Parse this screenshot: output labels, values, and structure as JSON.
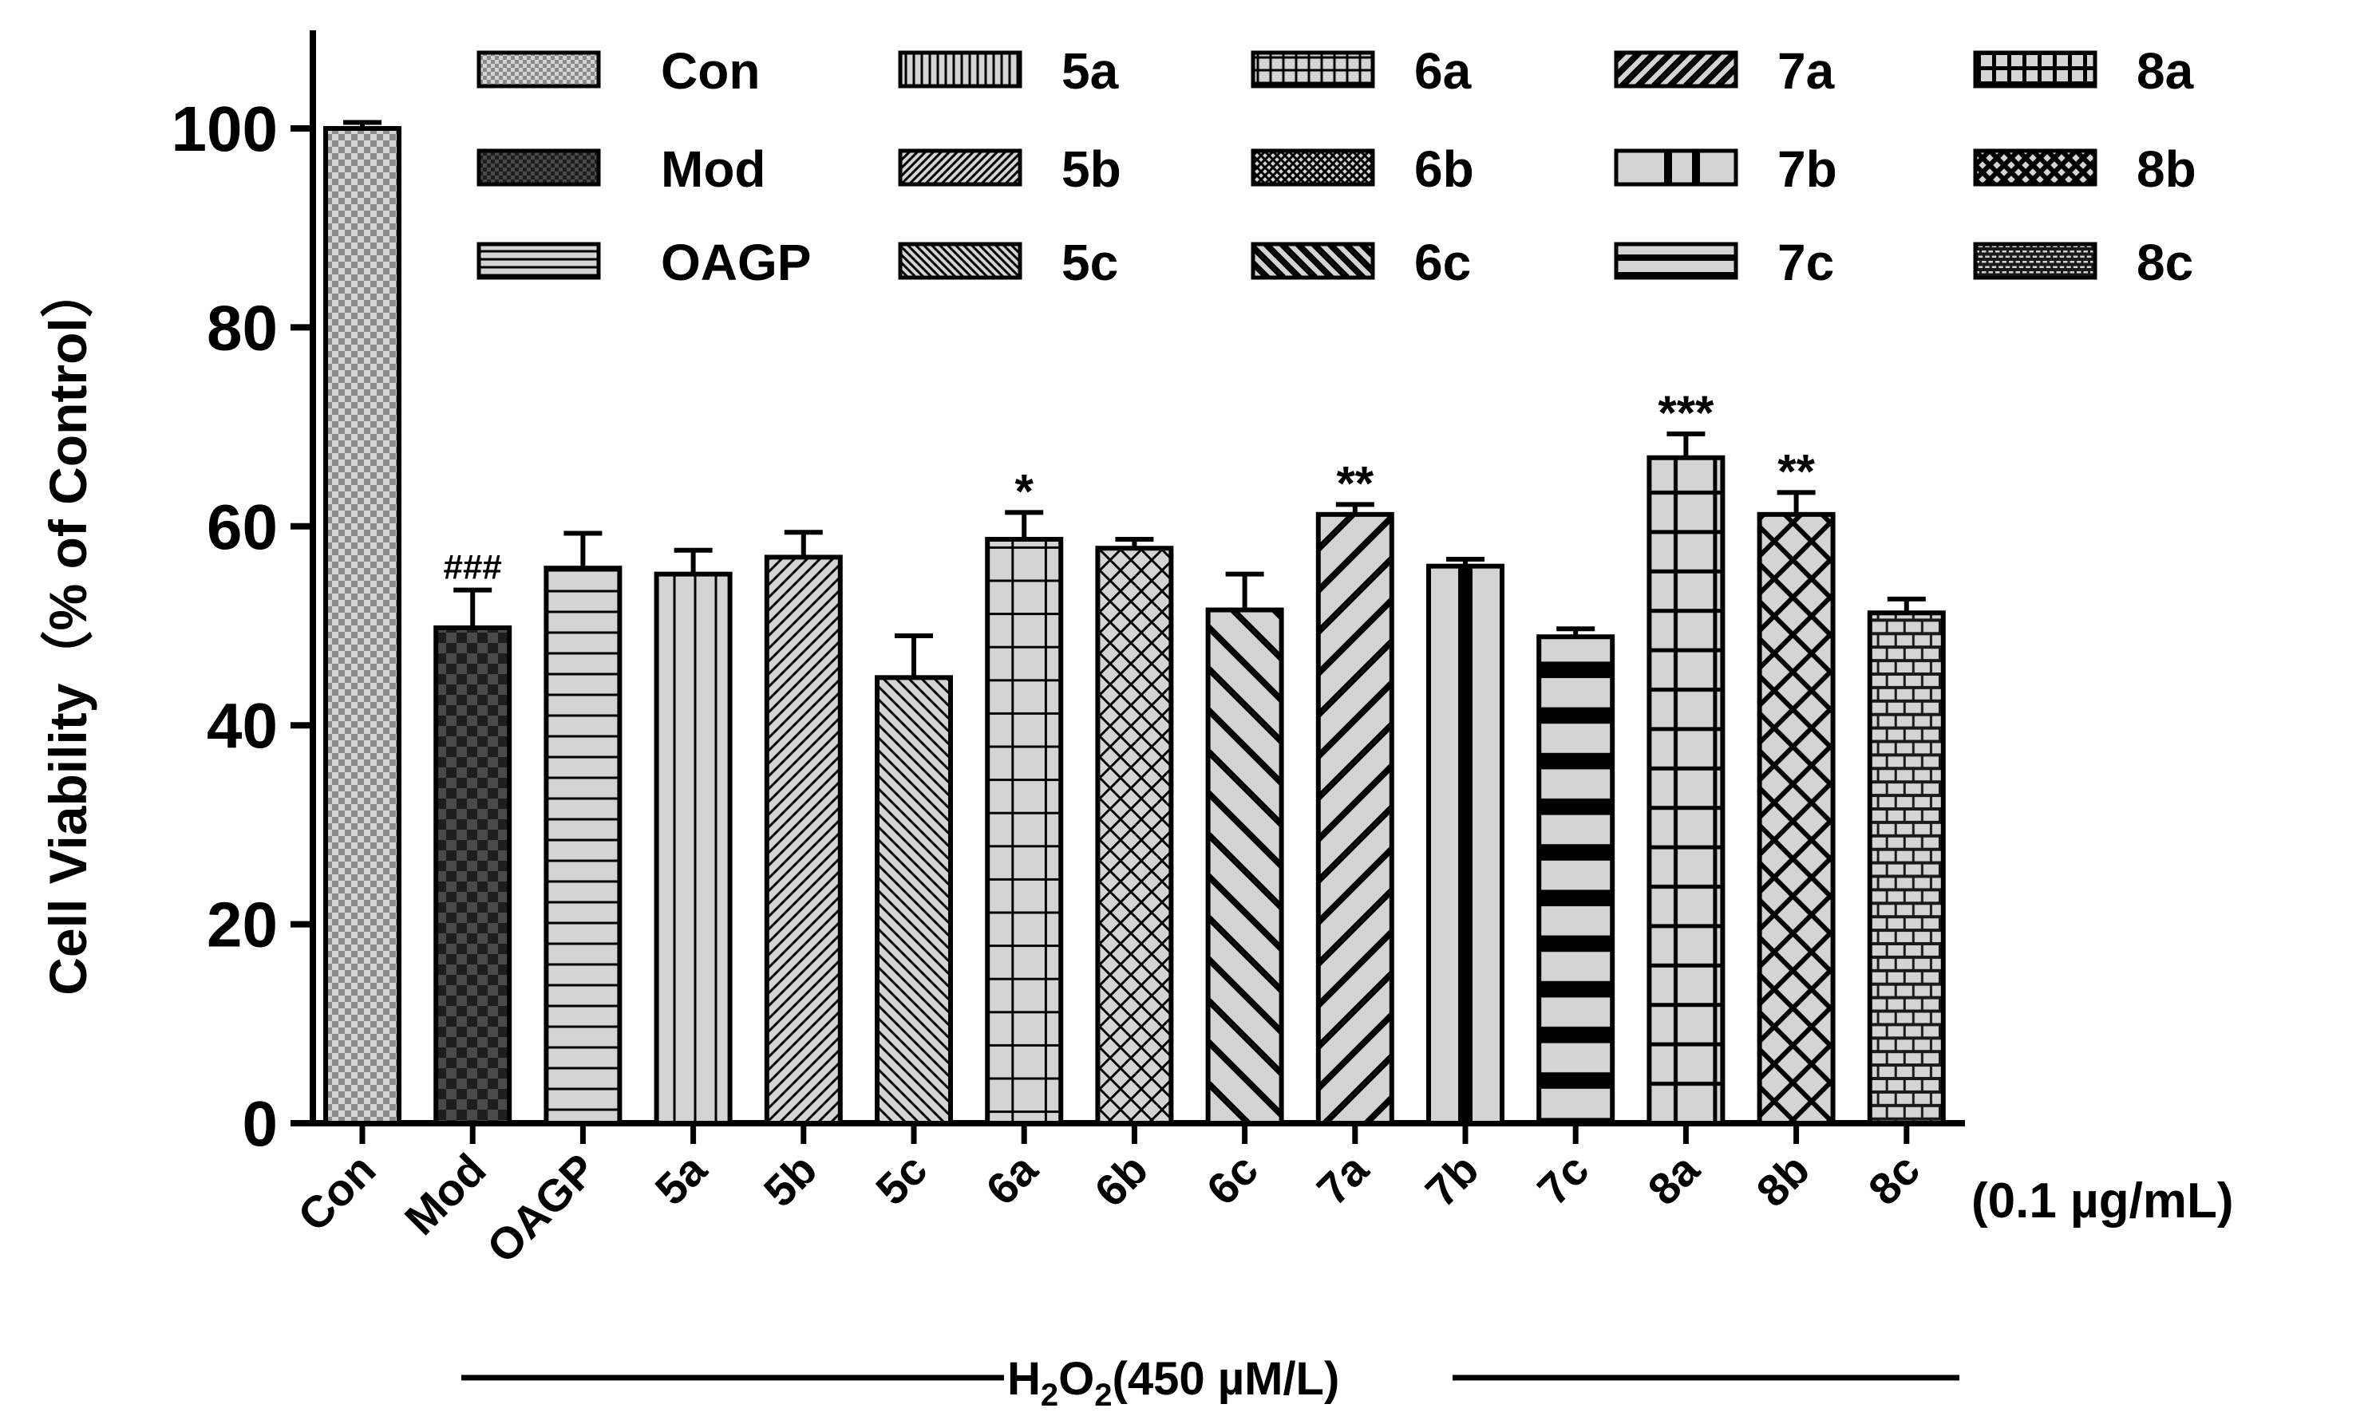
{
  "chart_data": {
    "type": "bar",
    "title": "",
    "ylabel": "Cell Viability（% of Control）",
    "xlabel": "",
    "ylim": [
      0,
      110
    ],
    "yticks": [
      "0",
      "20",
      "40",
      "60",
      "80",
      "100"
    ],
    "y_tick_values": [
      0,
      20,
      40,
      60,
      80,
      100
    ],
    "concentration_label": "(0.1 µg/mL)",
    "treatment_label": {
      "prefix": "H",
      "sub1": "2",
      "mid": "O",
      "sub2": "2",
      "suffix": "(450 µM/L)"
    },
    "categories": [
      "Con",
      "Mod",
      "OAGP",
      "5a",
      "5b",
      "5c",
      "6a",
      "6b",
      "6c",
      "7a",
      "7b",
      "7c",
      "8a",
      "8b",
      "8c"
    ],
    "values": [
      100.0,
      49.8,
      55.8,
      55.2,
      56.9,
      44.8,
      58.7,
      57.8,
      51.6,
      61.2,
      56.0,
      48.9,
      66.9,
      61.2,
      51.3
    ],
    "errors": [
      0.6,
      3.8,
      3.5,
      2.4,
      2.5,
      4.2,
      2.7,
      0.9,
      3.6,
      1.0,
      0.7,
      0.8,
      2.4,
      2.2,
      1.4
    ],
    "annotations": [
      "",
      "###",
      "",
      "",
      "",
      "",
      "*",
      "",
      "",
      "**",
      "",
      "",
      "***",
      "**",
      ""
    ],
    "patterns": [
      "checker-fine",
      "checker-coarse",
      "hlines",
      "vlines",
      "diag-fine",
      "backdiag-fine",
      "grid",
      "weave",
      "backdiag-thick",
      "diag-thick",
      "vbar-thick",
      "hbar-thick",
      "grid-thick",
      "cross-x",
      "brick"
    ],
    "legend": {
      "placement": "top",
      "entries": [
        "Con",
        "Mod",
        "OAGP",
        "5a",
        "5b",
        "5c",
        "6a",
        "6b",
        "6c",
        "7a",
        "7b",
        "7c",
        "8a",
        "8b",
        "8c"
      ]
    }
  },
  "colors": {
    "bar_fill": "#d4d4d4",
    "ink": "#000000",
    "dark_check": "#4a4a4a"
  }
}
